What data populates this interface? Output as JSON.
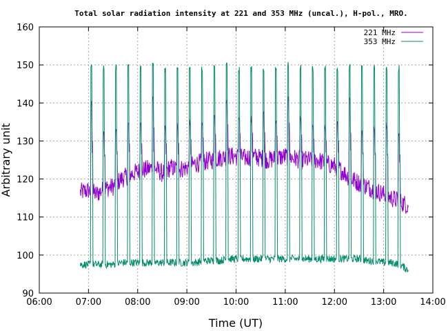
{
  "chart_data": {
    "type": "line",
    "title": "Total solar radiation intensity at 221 and 353 MHz (uncal.), H-pol., MRO.",
    "xlabel": "Time (UT)",
    "ylabel": "Arbitrary unit",
    "xlim": [
      "06:00",
      "14:00"
    ],
    "ylim": [
      90,
      160
    ],
    "x_ticks": [
      "06:00",
      "07:00",
      "08:00",
      "09:00",
      "10:00",
      "11:00",
      "12:00",
      "13:00",
      "14:00"
    ],
    "y_ticks": [
      90,
      100,
      110,
      120,
      130,
      140,
      150,
      160
    ],
    "grid": true,
    "legend_position": "top-right",
    "series": [
      {
        "name": "221 MHz",
        "color": "#9400d3",
        "x": [
          "06:50",
          "07:00",
          "07:10",
          "07:20",
          "07:30",
          "07:40",
          "07:50",
          "08:00",
          "08:10",
          "08:20",
          "08:30",
          "08:40",
          "08:50",
          "09:00",
          "09:10",
          "09:20",
          "09:30",
          "09:40",
          "09:50",
          "10:00",
          "10:10",
          "10:20",
          "10:30",
          "10:40",
          "10:50",
          "11:00",
          "11:10",
          "11:20",
          "11:30",
          "11:40",
          "11:50",
          "12:00",
          "12:10",
          "12:20",
          "12:30",
          "12:40",
          "12:50",
          "13:00",
          "13:10",
          "13:20",
          "13:30"
        ],
        "values": [
          116.5,
          117,
          116,
          117.5,
          118,
          120,
          121,
          122,
          122.5,
          123,
          121.5,
          123,
          122.5,
          123,
          124,
          124.5,
          125,
          125.5,
          126,
          126,
          125.5,
          126,
          125.5,
          125,
          125.5,
          126,
          125.5,
          125,
          125,
          125,
          124,
          123.5,
          122,
          120,
          119,
          118,
          117,
          116,
          115,
          114,
          113
        ],
        "spikes": [
          {
            "t": "07:03",
            "peak": 141
          },
          {
            "t": "07:18",
            "peak": 133
          },
          {
            "t": "07:33",
            "peak": 134
          },
          {
            "t": "07:48",
            "peak": 136
          },
          {
            "t": "08:03",
            "peak": 135
          },
          {
            "t": "08:18",
            "peak": 142
          },
          {
            "t": "08:33",
            "peak": 135
          },
          {
            "t": "08:48",
            "peak": 135
          },
          {
            "t": "09:03",
            "peak": 136
          },
          {
            "t": "09:18",
            "peak": 136
          },
          {
            "t": "09:33",
            "peak": 137
          },
          {
            "t": "09:48",
            "peak": 141
          },
          {
            "t": "10:03",
            "peak": 137
          },
          {
            "t": "10:18",
            "peak": 137
          },
          {
            "t": "10:33",
            "peak": 138
          },
          {
            "t": "10:48",
            "peak": 136
          },
          {
            "t": "11:03",
            "peak": 142
          },
          {
            "t": "11:18",
            "peak": 137
          },
          {
            "t": "11:33",
            "peak": 135
          },
          {
            "t": "11:48",
            "peak": 135
          },
          {
            "t": "12:03",
            "peak": 136
          },
          {
            "t": "12:18",
            "peak": 142
          },
          {
            "t": "12:33",
            "peak": 133
          },
          {
            "t": "12:48",
            "peak": 134
          },
          {
            "t": "13:03",
            "peak": 135
          },
          {
            "t": "13:18",
            "peak": 133
          }
        ]
      },
      {
        "name": "353 MHz",
        "color": "#008b6b",
        "x": [
          "06:50",
          "07:00",
          "07:10",
          "07:20",
          "07:30",
          "07:40",
          "07:50",
          "08:00",
          "08:10",
          "08:20",
          "08:30",
          "08:40",
          "08:50",
          "09:00",
          "09:10",
          "09:20",
          "09:30",
          "09:40",
          "09:50",
          "10:00",
          "10:10",
          "10:20",
          "10:30",
          "10:40",
          "10:50",
          "11:00",
          "11:10",
          "11:20",
          "11:30",
          "11:40",
          "11:50",
          "12:00",
          "12:10",
          "12:20",
          "12:30",
          "12:40",
          "12:50",
          "13:00",
          "13:10",
          "13:20",
          "13:30"
        ],
        "values": [
          97.5,
          97.5,
          97.5,
          97.5,
          97.5,
          98,
          98,
          98,
          98,
          98,
          98,
          98,
          98,
          98,
          98,
          98.5,
          98.5,
          98.5,
          99,
          99,
          99,
          99,
          99,
          99,
          99,
          99,
          99,
          99,
          99,
          99,
          99,
          99,
          99,
          99,
          99,
          98.5,
          98.5,
          98,
          98,
          97.5,
          96
        ],
        "spikes": [
          {
            "t": "07:03",
            "peak": 151
          },
          {
            "t": "07:18",
            "peak": 150
          },
          {
            "t": "07:33",
            "peak": 150
          },
          {
            "t": "07:48",
            "peak": 151
          },
          {
            "t": "08:03",
            "peak": 150
          },
          {
            "t": "08:18",
            "peak": 151
          },
          {
            "t": "08:33",
            "peak": 150
          },
          {
            "t": "08:48",
            "peak": 150
          },
          {
            "t": "09:03",
            "peak": 150
          },
          {
            "t": "09:18",
            "peak": 150
          },
          {
            "t": "09:33",
            "peak": 150
          },
          {
            "t": "09:48",
            "peak": 151
          },
          {
            "t": "10:03",
            "peak": 150
          },
          {
            "t": "10:18",
            "peak": 150
          },
          {
            "t": "10:33",
            "peak": 150
          },
          {
            "t": "10:48",
            "peak": 150
          },
          {
            "t": "11:03",
            "peak": 151
          },
          {
            "t": "11:18",
            "peak": 150
          },
          {
            "t": "11:33",
            "peak": 150
          },
          {
            "t": "11:48",
            "peak": 150
          },
          {
            "t": "12:03",
            "peak": 150
          },
          {
            "t": "12:18",
            "peak": 151
          },
          {
            "t": "12:33",
            "peak": 150
          },
          {
            "t": "12:48",
            "peak": 150
          },
          {
            "t": "13:03",
            "peak": 150
          },
          {
            "t": "13:18",
            "peak": 150
          }
        ]
      }
    ]
  }
}
